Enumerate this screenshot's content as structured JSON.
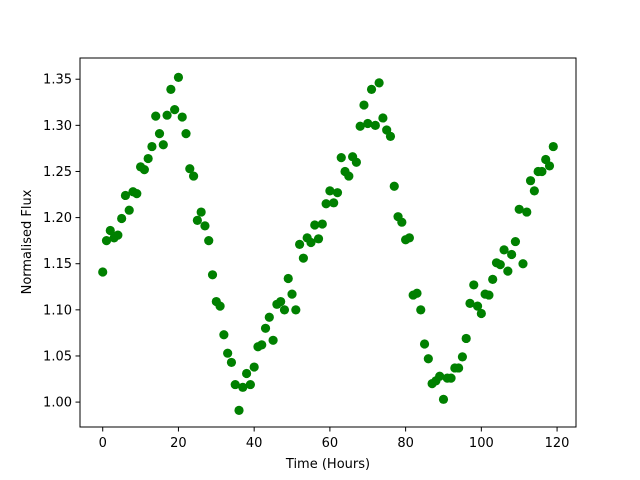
{
  "chart_data": {
    "type": "scatter",
    "xlabel": "Time (Hours)",
    "ylabel": "Normalised Flux",
    "xlim": [
      -6,
      125
    ],
    "ylim": [
      0.973,
      1.373
    ],
    "x_ticks": [
      0,
      20,
      40,
      60,
      80,
      100,
      120
    ],
    "x_tick_labels": [
      "0",
      "20",
      "40",
      "60",
      "80",
      "100",
      "120"
    ],
    "y_ticks": [
      1.0,
      1.05,
      1.1,
      1.15,
      1.2,
      1.25,
      1.3,
      1.35
    ],
    "y_tick_labels": [
      "1.00",
      "1.05",
      "1.10",
      "1.15",
      "1.20",
      "1.25",
      "1.30",
      "1.35"
    ],
    "grid": false,
    "marker_color": "#008000",
    "series": [
      {
        "points": [
          [
            0,
            1.141
          ],
          [
            1,
            1.175
          ],
          [
            2,
            1.186
          ],
          [
            3,
            1.178
          ],
          [
            4,
            1.181
          ],
          [
            5,
            1.199
          ],
          [
            6,
            1.224
          ],
          [
            7,
            1.208
          ],
          [
            8,
            1.228
          ],
          [
            9,
            1.226
          ],
          [
            10,
            1.255
          ],
          [
            11,
            1.252
          ],
          [
            12,
            1.264
          ],
          [
            13,
            1.277
          ],
          [
            14,
            1.31
          ],
          [
            15,
            1.291
          ],
          [
            16,
            1.279
          ],
          [
            17,
            1.311
          ],
          [
            18,
            1.339
          ],
          [
            19,
            1.317
          ],
          [
            20,
            1.352
          ],
          [
            21,
            1.309
          ],
          [
            22,
            1.291
          ],
          [
            23,
            1.253
          ],
          [
            24,
            1.245
          ],
          [
            25,
            1.197
          ],
          [
            26,
            1.206
          ],
          [
            27,
            1.191
          ],
          [
            28,
            1.175
          ],
          [
            29,
            1.138
          ],
          [
            30,
            1.109
          ],
          [
            31,
            1.104
          ],
          [
            32,
            1.073
          ],
          [
            33,
            1.053
          ],
          [
            34,
            1.043
          ],
          [
            35,
            1.019
          ],
          [
            36,
            0.991
          ],
          [
            37,
            1.016
          ],
          [
            38,
            1.031
          ],
          [
            39,
            1.019
          ],
          [
            40,
            1.038
          ],
          [
            41,
            1.06
          ],
          [
            42,
            1.062
          ],
          [
            43,
            1.08
          ],
          [
            44,
            1.092
          ],
          [
            45,
            1.067
          ],
          [
            46,
            1.106
          ],
          [
            47,
            1.109
          ],
          [
            48,
            1.1
          ],
          [
            49,
            1.134
          ],
          [
            50,
            1.117
          ],
          [
            51,
            1.1
          ],
          [
            52,
            1.171
          ],
          [
            53,
            1.156
          ],
          [
            54,
            1.178
          ],
          [
            55,
            1.173
          ],
          [
            56,
            1.192
          ],
          [
            57,
            1.177
          ],
          [
            58,
            1.193
          ],
          [
            59,
            1.215
          ],
          [
            60,
            1.229
          ],
          [
            61,
            1.216
          ],
          [
            62,
            1.227
          ],
          [
            63,
            1.265
          ],
          [
            64,
            1.25
          ],
          [
            65,
            1.245
          ],
          [
            66,
            1.266
          ],
          [
            67,
            1.26
          ],
          [
            68,
            1.299
          ],
          [
            69,
            1.322
          ],
          [
            70,
            1.302
          ],
          [
            71,
            1.339
          ],
          [
            72,
            1.3
          ],
          [
            73,
            1.346
          ],
          [
            74,
            1.308
          ],
          [
            75,
            1.295
          ],
          [
            76,
            1.288
          ],
          [
            77,
            1.234
          ],
          [
            78,
            1.201
          ],
          [
            79,
            1.195
          ],
          [
            80,
            1.176
          ],
          [
            81,
            1.178
          ],
          [
            82,
            1.116
          ],
          [
            83,
            1.118
          ],
          [
            84,
            1.1
          ],
          [
            85,
            1.063
          ],
          [
            86,
            1.047
          ],
          [
            87,
            1.02
          ],
          [
            88,
            1.023
          ],
          [
            89,
            1.028
          ],
          [
            90,
            1.003
          ],
          [
            91,
            1.026
          ],
          [
            92,
            1.026
          ],
          [
            93,
            1.037
          ],
          [
            94,
            1.037
          ],
          [
            95,
            1.049
          ],
          [
            96,
            1.069
          ],
          [
            97,
            1.107
          ],
          [
            98,
            1.127
          ],
          [
            99,
            1.104
          ],
          [
            100,
            1.096
          ],
          [
            101,
            1.117
          ],
          [
            102,
            1.116
          ],
          [
            103,
            1.133
          ],
          [
            104,
            1.151
          ],
          [
            105,
            1.149
          ],
          [
            106,
            1.165
          ],
          [
            107,
            1.142
          ],
          [
            108,
            1.16
          ],
          [
            109,
            1.174
          ],
          [
            110,
            1.209
          ],
          [
            111,
            1.15
          ],
          [
            112,
            1.206
          ],
          [
            113,
            1.24
          ],
          [
            114,
            1.229
          ],
          [
            115,
            1.25
          ],
          [
            116,
            1.25
          ],
          [
            117,
            1.263
          ],
          [
            118,
            1.256
          ],
          [
            119,
            1.277
          ]
        ]
      }
    ]
  }
}
